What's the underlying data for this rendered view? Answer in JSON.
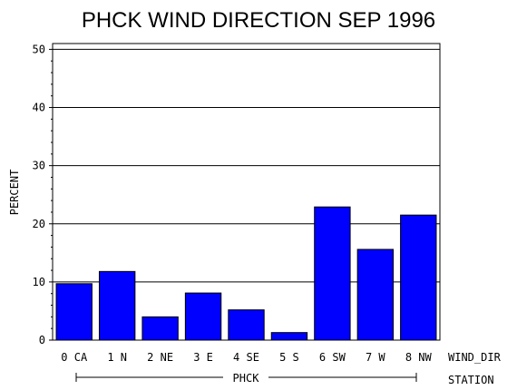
{
  "chart_data": {
    "type": "bar",
    "title": "PHCK WIND DIRECTION SEP 1996",
    "ylabel": "PERCENT",
    "xlabel": "WIND_DIR",
    "group_axis_label": "STATION",
    "group_label": "PHCK",
    "ylim": [
      0,
      51
    ],
    "yticks": [
      0,
      10,
      20,
      30,
      40,
      50
    ],
    "grid": true,
    "bar_color": "#0000ff",
    "categories": [
      "0 CA",
      "1 N",
      "2 NE",
      "3 E",
      "4 SE",
      "5 S",
      "6 SW",
      "7 W",
      "8 NW"
    ],
    "values": [
      9.7,
      11.8,
      4.0,
      8.1,
      5.2,
      1.3,
      22.9,
      15.6,
      21.5
    ]
  }
}
